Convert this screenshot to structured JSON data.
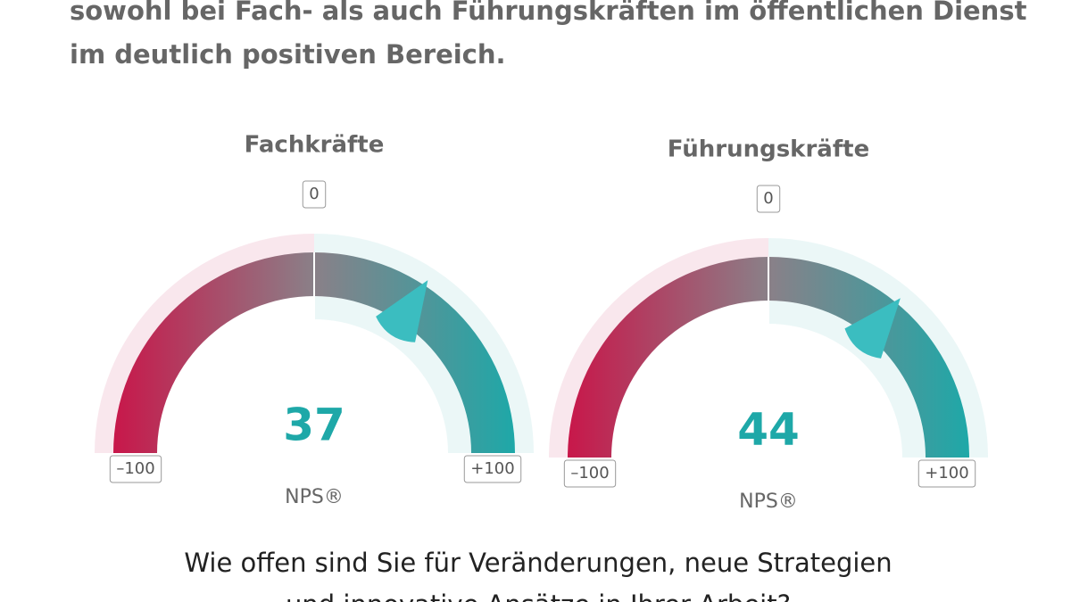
{
  "header": {
    "lines": [
      "sowohl bei Fach- als auch Führungskräften im öffentlichen Dienst",
      "im deutlich positiven Bereich."
    ]
  },
  "chart_data": [
    {
      "type": "gauge",
      "title": "Fachkräfte",
      "value": 37,
      "unit_label": "NPS®",
      "ylim": [
        -100,
        100
      ],
      "yticks": [
        {
          "value": -100,
          "label": "–100"
        },
        0,
        {
          "value": 100,
          "label": "+100"
        }
      ],
      "colors": [
        "#c8174a",
        "#1ea8a8"
      ]
    },
    {
      "type": "gauge",
      "title": "Führungskräfte",
      "value": 44,
      "unit_label": "NPS®",
      "ylim": [
        -100,
        100
      ],
      "yticks": [
        {
          "value": -100,
          "label": "–100"
        },
        0,
        {
          "value": 100,
          "label": "+100"
        }
      ],
      "colors": [
        "#c8174a",
        "#1ea8a8"
      ]
    }
  ],
  "footer": {
    "lines": [
      "Wie offen sind Sie für Veränderungen, neue Strategien",
      "und innovative Ansätze in Ihrer Arbeit?"
    ]
  }
}
